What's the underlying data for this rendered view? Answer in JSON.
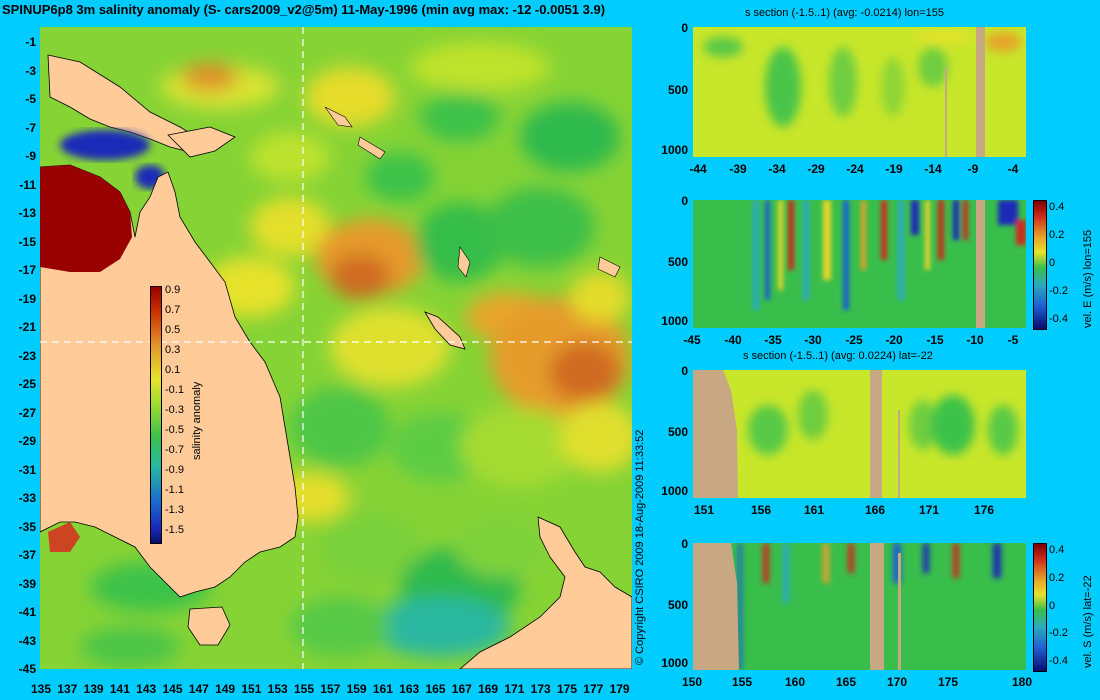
{
  "title": "SPINUP6p8 3m salinity anomaly (S- cars2009_v2@5m) 11-May-1996 (min avg max: -12 -0.0051 3.9)",
  "map": {
    "lat_ticks": [
      "-1",
      "-3",
      "-5",
      "-7",
      "-9",
      "-11",
      "-13",
      "-15",
      "-17",
      "-19",
      "-21",
      "-23",
      "-25",
      "-27",
      "-29",
      "-31",
      "-33",
      "-35",
      "-37",
      "-39",
      "-41",
      "-43",
      "-45"
    ],
    "lon_ticks": [
      "135",
      "137",
      "139",
      "141",
      "143",
      "145",
      "147",
      "149",
      "151",
      "153",
      "155",
      "157",
      "159",
      "161",
      "163",
      "165",
      "167",
      "169",
      "171",
      "173",
      "175",
      "177",
      "179"
    ],
    "colorbar": {
      "label": "salinity anomaly",
      "ticks": [
        "0.9",
        "0.7",
        "0.5",
        "0.3",
        "0.1",
        "-0.1",
        "-0.3",
        "-0.5",
        "-0.7",
        "-0.9",
        "-1.1",
        "-1.3",
        "-1.5"
      ]
    }
  },
  "copyright": "© Copyright CSIRO 2009   18-Aug-2009 11:33:52",
  "sections": [
    {
      "id": "s-lon",
      "subtitle": "s section (-1.5..1) (avg: -0.0214) lon=155",
      "y_ticks": [
        "0",
        "500",
        "1000"
      ],
      "x_ticks": [
        "-44",
        "-39",
        "-34",
        "-29",
        "-24",
        "-19",
        "-14",
        "-9",
        "-4"
      ]
    },
    {
      "id": "v-lon",
      "subtitle": "",
      "y_ticks": [
        "0",
        "500",
        "1000"
      ],
      "x_ticks": [
        "-45",
        "-40",
        "-35",
        "-30",
        "-25",
        "-20",
        "-15",
        "-10",
        "-5"
      ],
      "colorbar_ticks": [
        "0.4",
        "0.2",
        "0",
        "-0.2",
        "-0.4"
      ],
      "colorbar_label": "vel. E (m/s) lon=155"
    },
    {
      "id": "s-lat",
      "subtitle": "s section (-1.5..1) (avg: 0.0224) lat=-22",
      "y_ticks": [
        "0",
        "500",
        "1000"
      ],
      "x_ticks": [
        "151",
        "156",
        "161",
        "166",
        "171",
        "176"
      ]
    },
    {
      "id": "v-lat",
      "subtitle": "",
      "y_ticks": [
        "0",
        "500",
        "1000"
      ],
      "x_ticks": [
        "150",
        "155",
        "160",
        "165",
        "170",
        "175",
        "180"
      ],
      "colorbar_ticks": [
        "0.4",
        "0.2",
        "0",
        "-0.2",
        "-0.4"
      ],
      "colorbar_label": "vel. S (m/s) lat=-22"
    }
  ]
}
